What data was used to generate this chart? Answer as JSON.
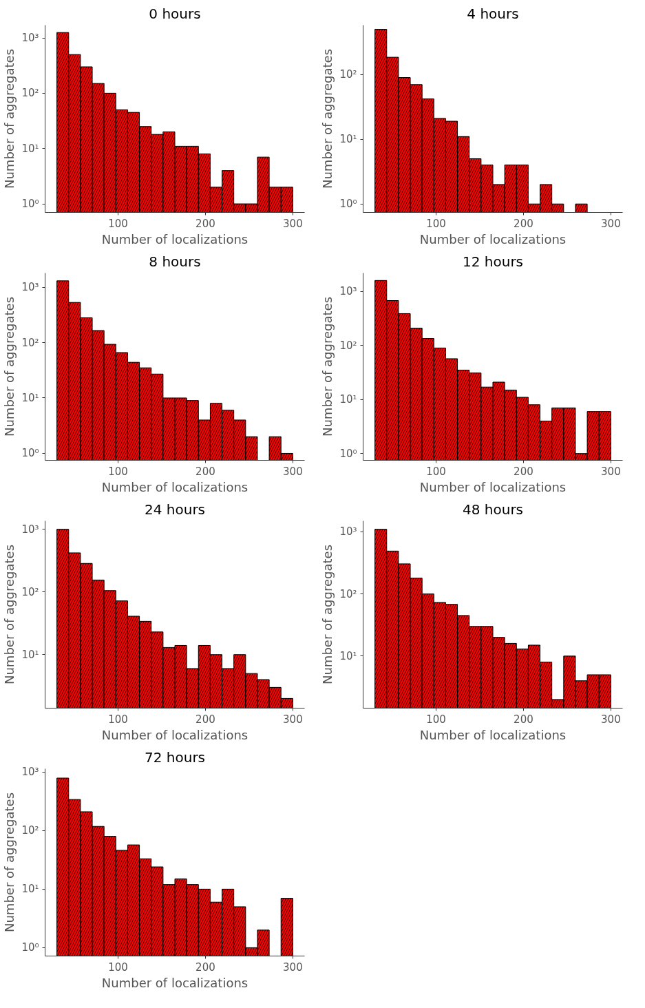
{
  "chart_data": [
    {
      "type": "histogram",
      "title": "0 hours",
      "xlabel": "Number of localizations",
      "ylabel": "Number of aggregates",
      "log": "y",
      "grid": false,
      "color": "#ff0000",
      "bins": [
        30,
        43.5,
        57,
        70.5,
        84,
        97.5,
        111,
        124.5,
        138,
        151.5,
        165,
        178.5,
        192,
        205.5,
        219,
        232.5,
        246,
        259.5,
        273,
        286.5,
        300
      ],
      "values": [
        1250,
        500,
        300,
        150,
        100,
        50,
        45,
        25,
        18,
        20,
        11,
        11,
        8,
        2,
        4,
        1,
        1,
        7,
        2,
        2
      ],
      "xlim": [
        16.5,
        313.5
      ],
      "xticks": [
        100,
        200,
        300
      ],
      "ylim": [
        0.7,
        1700
      ],
      "yticks": [
        {
          "value": 1,
          "label": "10⁰"
        },
        {
          "value": 10,
          "label": "10¹"
        },
        {
          "value": 100,
          "label": "10²"
        },
        {
          "value": 1000,
          "label": "10³"
        }
      ]
    },
    {
      "type": "histogram",
      "title": "4 hours",
      "xlabel": "Number of localizations",
      "ylabel": "Number of aggregates",
      "log": "y",
      "grid": false,
      "color": "#ff0000",
      "bins": [
        30,
        43.5,
        57,
        70.5,
        84,
        97.5,
        111,
        124.5,
        138,
        151.5,
        165,
        178.5,
        192,
        205.5,
        219,
        232.5,
        246,
        259.5,
        273,
        286.5,
        300
      ],
      "values": [
        500,
        185,
        90,
        70,
        42,
        21,
        19,
        11,
        5,
        4,
        2,
        4,
        4,
        1,
        2,
        1,
        null,
        1,
        null,
        null
      ],
      "xlim": [
        16.5,
        313.5
      ],
      "xticks": [
        100,
        200,
        300
      ],
      "ylim": [
        0.74,
        580
      ],
      "yticks": [
        {
          "value": 1,
          "label": "10⁰"
        },
        {
          "value": 10,
          "label": "10¹"
        },
        {
          "value": 100,
          "label": "10²"
        }
      ]
    },
    {
      "type": "histogram",
      "title": "8 hours",
      "xlabel": "Number of localizations",
      "ylabel": "Number of aggregates",
      "log": "y",
      "grid": false,
      "color": "#ff0000",
      "bins": [
        30,
        43.5,
        57,
        70.5,
        84,
        97.5,
        111,
        124.5,
        138,
        151.5,
        165,
        178.5,
        192,
        205.5,
        219,
        232.5,
        246,
        259.5,
        273,
        286.5,
        300
      ],
      "values": [
        1300,
        530,
        280,
        165,
        93,
        66,
        44,
        35,
        27,
        10,
        10,
        9,
        4,
        8,
        6,
        4,
        2,
        null,
        2,
        1
      ],
      "xlim": [
        16.5,
        313.5
      ],
      "xticks": [
        100,
        200,
        300
      ],
      "ylim": [
        0.75,
        1800
      ],
      "yticks": [
        {
          "value": 1,
          "label": "10⁰"
        },
        {
          "value": 10,
          "label": "10¹"
        },
        {
          "value": 100,
          "label": "10²"
        },
        {
          "value": 1000,
          "label": "10³"
        }
      ]
    },
    {
      "type": "histogram",
      "title": "12 hours",
      "xlabel": "Number of localizations",
      "ylabel": "Number of aggregates",
      "log": "y",
      "grid": false,
      "color": "#ff0000",
      "bins": [
        30,
        43.5,
        57,
        70.5,
        84,
        97.5,
        111,
        124.5,
        138,
        151.5,
        165,
        178.5,
        192,
        205.5,
        219,
        232.5,
        246,
        259.5,
        273,
        286.5,
        300
      ],
      "values": [
        1600,
        680,
        390,
        210,
        135,
        90,
        57,
        35,
        31,
        17,
        21,
        15,
        11,
        8,
        4,
        7,
        7,
        1,
        6,
        6
      ],
      "xlim": [
        16.5,
        313.5
      ],
      "xticks": [
        100,
        200,
        300
      ],
      "ylim": [
        0.75,
        2200
      ],
      "yticks": [
        {
          "value": 1,
          "label": "10⁰"
        },
        {
          "value": 10,
          "label": "10¹"
        },
        {
          "value": 100,
          "label": "10²"
        },
        {
          "value": 1000,
          "label": "10³"
        }
      ]
    },
    {
      "type": "histogram",
      "title": "24 hours",
      "xlabel": "Number of localizations",
      "ylabel": "Number of aggregates",
      "log": "y",
      "grid": false,
      "color": "#ff0000",
      "bins": [
        30,
        43.5,
        57,
        70.5,
        84,
        97.5,
        111,
        124.5,
        138,
        151.5,
        165,
        178.5,
        192,
        205.5,
        219,
        232.5,
        246,
        259.5,
        273,
        286.5,
        300
      ],
      "values": [
        1000,
        420,
        285,
        155,
        105,
        72,
        41,
        34,
        23,
        13,
        14,
        6,
        14,
        10,
        6,
        10,
        5,
        4,
        3,
        2
      ],
      "xlim": [
        16.5,
        313.5
      ],
      "xticks": [
        100,
        200,
        300
      ],
      "ylim": [
        1.4,
        1360
      ],
      "yticks": [
        {
          "value": 10,
          "label": "10¹"
        },
        {
          "value": 100,
          "label": "10²"
        },
        {
          "value": 1000,
          "label": "10³"
        }
      ]
    },
    {
      "type": "histogram",
      "title": "48 hours",
      "xlabel": "Number of localizations",
      "ylabel": "Number of aggregates",
      "log": "y",
      "grid": false,
      "color": "#ff0000",
      "bins": [
        30,
        43.5,
        57,
        70.5,
        84,
        97.5,
        111,
        124.5,
        138,
        151.5,
        165,
        178.5,
        192,
        205.5,
        219,
        232.5,
        246,
        259.5,
        273,
        286.5,
        300
      ],
      "values": [
        1100,
        490,
        305,
        180,
        100,
        73,
        68,
        45,
        30,
        30,
        20,
        16,
        13,
        15,
        8,
        2,
        10,
        4,
        5,
        5
      ],
      "xlim": [
        16.5,
        313.5
      ],
      "xticks": [
        100,
        200,
        300
      ],
      "ylim": [
        1.45,
        1500
      ],
      "yticks": [
        {
          "value": 10,
          "label": "10¹"
        },
        {
          "value": 100,
          "label": "10²"
        },
        {
          "value": 1000,
          "label": "10³"
        }
      ]
    },
    {
      "type": "histogram",
      "title": "72 hours",
      "xlabel": "Number of localizations",
      "ylabel": "Number of aggregates",
      "log": "y",
      "grid": false,
      "color": "#ff0000",
      "bins": [
        30,
        43.5,
        57,
        70.5,
        84,
        97.5,
        111,
        124.5,
        138,
        151.5,
        165,
        178.5,
        192,
        205.5,
        219,
        232.5,
        246,
        259.5,
        273,
        286.5,
        300
      ],
      "values": [
        790,
        340,
        210,
        118,
        80,
        46,
        57,
        33,
        24,
        12,
        15,
        12,
        10,
        6,
        10,
        5,
        1,
        2,
        null,
        7
      ],
      "xlim": [
        16.5,
        313.5
      ],
      "xticks": [
        100,
        200,
        300
      ],
      "ylim": [
        0.72,
        1140
      ],
      "yticks": [
        {
          "value": 1,
          "label": "10⁰"
        },
        {
          "value": 10,
          "label": "10¹"
        },
        {
          "value": 100,
          "label": "10²"
        },
        {
          "value": 1000,
          "label": "10³"
        }
      ]
    }
  ]
}
